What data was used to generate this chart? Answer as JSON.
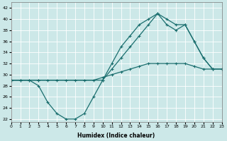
{
  "xlabel": "Humidex (Indice chaleur)",
  "background_color": "#cce8e8",
  "grid_color": "#ffffff",
  "line_color": "#1a6e6e",
  "xlim": [
    0,
    23
  ],
  "ylim": [
    21.5,
    43
  ],
  "yticks": [
    22,
    24,
    26,
    28,
    30,
    32,
    34,
    36,
    38,
    40,
    42
  ],
  "xticks": [
    0,
    1,
    2,
    3,
    4,
    5,
    6,
    7,
    8,
    9,
    10,
    11,
    12,
    13,
    14,
    15,
    16,
    17,
    18,
    19,
    20,
    21,
    22,
    23
  ],
  "line1_x": [
    0,
    1,
    2,
    3,
    4,
    5,
    6,
    7,
    8,
    9,
    10,
    11,
    12,
    13,
    14,
    15,
    16,
    17,
    18,
    19,
    20,
    21,
    22
  ],
  "line1_y": [
    29,
    29,
    29,
    28,
    25,
    23,
    22,
    22,
    23,
    26,
    29,
    32,
    35,
    37,
    39,
    40,
    41,
    40,
    39,
    39,
    36,
    33,
    31
  ],
  "line2_x": [
    0,
    1,
    2,
    3,
    4,
    5,
    6,
    7,
    8,
    9,
    10,
    11,
    12,
    13,
    14,
    15,
    16,
    17,
    18,
    19,
    20,
    21,
    22,
    23
  ],
  "line2_y": [
    29,
    29,
    29,
    29,
    29,
    29,
    29,
    29,
    29,
    29,
    29.5,
    30,
    30.5,
    31,
    31.5,
    32,
    32,
    32,
    32,
    32,
    31.5,
    31,
    31,
    31
  ],
  "line3_x": [
    0,
    3,
    10,
    11,
    12,
    13,
    14,
    15,
    16,
    17,
    18,
    19,
    20,
    21,
    22,
    23
  ],
  "line3_y": [
    29,
    29,
    29,
    31,
    33,
    35,
    37,
    39,
    41,
    39,
    38,
    39,
    36,
    33,
    31,
    31
  ]
}
